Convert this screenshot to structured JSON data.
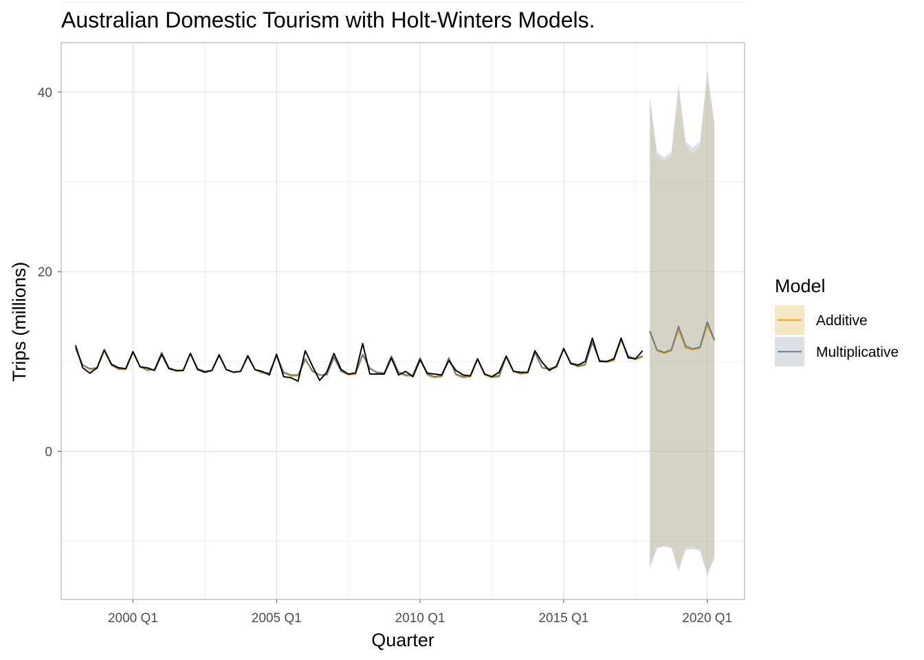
{
  "chart_data": {
    "type": "line",
    "title": "Australian Domestic Tourism with Holt-Winters Models.",
    "xlabel": "Quarter",
    "ylabel": "Trips (millions)",
    "x_tick_labels": [
      "2000 Q1",
      "2005 Q1",
      "2010 Q1",
      "2015 Q1",
      "2020 Q1"
    ],
    "x_tick_years": [
      2000,
      2005,
      2010,
      2015,
      2020
    ],
    "y_tick_labels": [
      "0",
      "20",
      "40"
    ],
    "y_tick_values": [
      0,
      20,
      40
    ],
    "xlim": [
      1997.5,
      2021.3
    ],
    "ylim": [
      -16.5,
      45.5
    ],
    "grid": true,
    "legend": {
      "title": "Model",
      "position": "right",
      "entries": [
        {
          "label": "Additive",
          "color": "#E6A817",
          "fill": "#F5E6C4"
        },
        {
          "label": "Multiplicative",
          "color": "#6B7A87",
          "fill": "#DDE1E5"
        }
      ]
    },
    "observed": {
      "color": "#000000",
      "x": [
        1998.0,
        1998.25,
        1998.5,
        1998.75,
        1999.0,
        1999.25,
        1999.5,
        1999.75,
        2000.0,
        2000.25,
        2000.5,
        2000.75,
        2001.0,
        2001.25,
        2001.5,
        2001.75,
        2002.0,
        2002.25,
        2002.5,
        2002.75,
        2003.0,
        2003.25,
        2003.5,
        2003.75,
        2004.0,
        2004.25,
        2004.5,
        2004.75,
        2005.0,
        2005.25,
        2005.5,
        2005.75,
        2006.0,
        2006.25,
        2006.5,
        2006.75,
        2007.0,
        2007.25,
        2007.5,
        2007.75,
        2008.0,
        2008.25,
        2008.5,
        2008.75,
        2009.0,
        2009.25,
        2009.5,
        2009.75,
        2010.0,
        2010.25,
        2010.5,
        2010.75,
        2011.0,
        2011.25,
        2011.5,
        2011.75,
        2012.0,
        2012.25,
        2012.5,
        2012.75,
        2013.0,
        2013.25,
        2013.5,
        2013.75,
        2014.0,
        2014.25,
        2014.5,
        2014.75,
        2015.0,
        2015.25,
        2015.5,
        2015.75,
        2016.0,
        2016.25,
        2016.5,
        2016.75,
        2017.0,
        2017.25,
        2017.5,
        2017.75
      ],
      "y": [
        11.8,
        9.3,
        8.7,
        9.3,
        11.3,
        9.7,
        9.3,
        9.2,
        11.1,
        9.4,
        9.3,
        9.0,
        10.8,
        9.2,
        9.0,
        9.0,
        10.9,
        9.1,
        8.8,
        9.0,
        10.7,
        9.1,
        8.8,
        8.9,
        10.6,
        9.1,
        8.9,
        8.5,
        10.8,
        8.3,
        8.2,
        7.8,
        11.2,
        9.5,
        7.9,
        8.8,
        10.9,
        9.1,
        8.6,
        8.7,
        12.0,
        8.6,
        8.6,
        8.6,
        10.4,
        8.5,
        8.9,
        8.3,
        10.2,
        8.7,
        8.6,
        8.5,
        10.1,
        9.0,
        8.5,
        8.4,
        10.3,
        8.6,
        8.3,
        8.8,
        10.6,
        8.9,
        8.8,
        8.8,
        11.2,
        9.9,
        9.0,
        9.5,
        11.4,
        9.8,
        9.6,
        10.0,
        12.6,
        10.0,
        10.0,
        10.3,
        12.6,
        10.4,
        10.3,
        11.2
      ]
    },
    "series": [
      {
        "name": "Additive",
        "color": "#E6A817",
        "x": [
          1998.0,
          1998.25,
          1998.5,
          1998.75,
          1999.0,
          1999.25,
          1999.5,
          1999.75,
          2000.0,
          2000.25,
          2000.5,
          2000.75,
          2001.0,
          2001.25,
          2001.5,
          2001.75,
          2002.0,
          2002.25,
          2002.5,
          2002.75,
          2003.0,
          2003.25,
          2003.5,
          2003.75,
          2004.0,
          2004.25,
          2004.5,
          2004.75,
          2005.0,
          2005.25,
          2005.5,
          2005.75,
          2006.0,
          2006.25,
          2006.5,
          2006.75,
          2007.0,
          2007.25,
          2007.5,
          2007.75,
          2008.0,
          2008.25,
          2008.5,
          2008.75,
          2009.0,
          2009.25,
          2009.5,
          2009.75,
          2010.0,
          2010.25,
          2010.5,
          2010.75,
          2011.0,
          2011.25,
          2011.5,
          2011.75,
          2012.0,
          2012.25,
          2012.5,
          2012.75,
          2013.0,
          2013.25,
          2013.5,
          2013.75,
          2014.0,
          2014.25,
          2014.5,
          2014.75,
          2015.0,
          2015.25,
          2015.5,
          2015.75,
          2016.0,
          2016.25,
          2016.5,
          2016.75,
          2017.0,
          2017.25,
          2017.5,
          2017.75
        ],
        "y": [
          11.4,
          9.6,
          9.1,
          9.2,
          11.2,
          9.6,
          9.1,
          9.1,
          11.0,
          9.4,
          9.0,
          9.1,
          11.0,
          9.3,
          8.9,
          9.0,
          10.9,
          9.2,
          8.9,
          9.0,
          10.7,
          9.1,
          8.8,
          8.9,
          10.6,
          9.1,
          8.7,
          8.7,
          10.6,
          8.7,
          8.4,
          8.4,
          10.2,
          9.0,
          8.5,
          8.5,
          10.4,
          8.9,
          8.5,
          8.6,
          10.7,
          9.3,
          8.7,
          8.6,
          10.6,
          8.7,
          8.4,
          8.4,
          10.3,
          8.5,
          8.2,
          8.3,
          10.3,
          8.5,
          8.2,
          8.3,
          10.2,
          8.5,
          8.2,
          8.3,
          10.5,
          8.9,
          8.6,
          8.7,
          11.0,
          9.3,
          9.1,
          9.3,
          11.5,
          9.8,
          9.4,
          9.6,
          12.2,
          10.1,
          9.9,
          10.1,
          12.4,
          10.6,
          10.2,
          10.5
        ]
      },
      {
        "name": "Multiplicative",
        "color": "#6B7A87",
        "x": [
          1998.0,
          1998.25,
          1998.5,
          1998.75,
          1999.0,
          1999.25,
          1999.5,
          1999.75,
          2000.0,
          2000.25,
          2000.5,
          2000.75,
          2001.0,
          2001.25,
          2001.5,
          2001.75,
          2002.0,
          2002.25,
          2002.5,
          2002.75,
          2003.0,
          2003.25,
          2003.5,
          2003.75,
          2004.0,
          2004.25,
          2004.5,
          2004.75,
          2005.0,
          2005.25,
          2005.5,
          2005.75,
          2006.0,
          2006.25,
          2006.5,
          2006.75,
          2007.0,
          2007.25,
          2007.5,
          2007.75,
          2008.0,
          2008.25,
          2008.5,
          2008.75,
          2009.0,
          2009.25,
          2009.5,
          2009.75,
          2010.0,
          2010.25,
          2010.5,
          2010.75,
          2011.0,
          2011.25,
          2011.5,
          2011.75,
          2012.0,
          2012.25,
          2012.5,
          2012.75,
          2013.0,
          2013.25,
          2013.5,
          2013.75,
          2014.0,
          2014.25,
          2014.5,
          2014.75,
          2015.0,
          2015.25,
          2015.5,
          2015.75,
          2016.0,
          2016.25,
          2016.5,
          2016.75,
          2017.0,
          2017.25,
          2017.5,
          2017.75
        ],
        "y": [
          11.5,
          9.6,
          9.2,
          9.3,
          11.3,
          9.6,
          9.2,
          9.2,
          11.1,
          9.4,
          9.1,
          9.1,
          11.0,
          9.3,
          9.0,
          9.0,
          10.9,
          9.2,
          8.9,
          9.0,
          10.8,
          9.1,
          8.8,
          8.9,
          10.7,
          9.1,
          8.8,
          8.7,
          10.7,
          8.8,
          8.5,
          8.5,
          10.3,
          8.9,
          8.5,
          8.5,
          10.5,
          8.9,
          8.6,
          8.7,
          10.8,
          9.2,
          8.8,
          8.7,
          10.6,
          8.8,
          8.5,
          8.5,
          10.4,
          8.6,
          8.3,
          8.4,
          10.4,
          8.6,
          8.3,
          8.4,
          10.3,
          8.6,
          8.3,
          8.4,
          10.6,
          8.9,
          8.7,
          8.8,
          11.0,
          9.3,
          9.2,
          9.4,
          11.5,
          9.7,
          9.5,
          9.7,
          12.1,
          10.1,
          10.0,
          10.2,
          12.5,
          10.6,
          10.3,
          10.6
        ]
      }
    ],
    "forecasts": [
      {
        "name": "Additive",
        "color": "#E6A817",
        "fill": "#E6C98A",
        "x": [
          2018.0,
          2018.25,
          2018.5,
          2018.75,
          2019.0,
          2019.25,
          2019.5,
          2019.75,
          2020.0,
          2020.25
        ],
        "mean": [
          13.3,
          11.2,
          10.9,
          11.2,
          13.5,
          11.5,
          11.3,
          11.5,
          14.0,
          12.3
        ],
        "lower": [
          -12.9,
          -10.7,
          -10.5,
          -10.6,
          -13.0,
          -10.7,
          -10.6,
          -10.9,
          -13.4,
          -11.8
        ],
        "upper": [
          39.3,
          33.0,
          32.3,
          32.9,
          40.0,
          34.0,
          33.2,
          33.9,
          41.6,
          36.3
        ]
      },
      {
        "name": "Multiplicative",
        "color": "#6B7A87",
        "fill": "#A9B3BC",
        "x": [
          2018.0,
          2018.25,
          2018.5,
          2018.75,
          2019.0,
          2019.25,
          2019.5,
          2019.75,
          2020.0,
          2020.25
        ],
        "mean": [
          13.4,
          11.3,
          11.0,
          11.3,
          13.9,
          11.7,
          11.4,
          11.6,
          14.4,
          12.4
        ],
        "lower": [
          -13.0,
          -10.8,
          -10.6,
          -10.8,
          -13.4,
          -11.0,
          -10.9,
          -11.1,
          -13.9,
          -11.9
        ],
        "upper": [
          39.5,
          33.3,
          32.7,
          33.3,
          41.0,
          34.5,
          33.8,
          34.5,
          42.5,
          36.6
        ]
      }
    ]
  }
}
